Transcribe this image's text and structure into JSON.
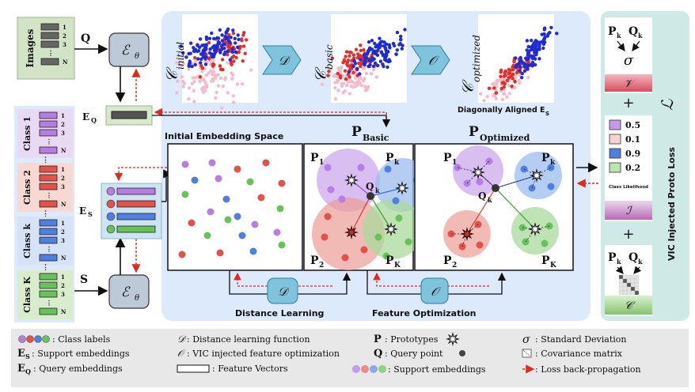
{
  "input": {
    "images_label": "Images",
    "q_label": "Q",
    "s_label": "S",
    "eq_label": "E",
    "eq_sub": "Q",
    "es_label": "E",
    "es_sub": "S",
    "encoder_label": "ℰ",
    "encoder_sub": "θ",
    "image_rows": [
      "1",
      "2",
      "3",
      "N"
    ],
    "classes": [
      {
        "name": "Class 1",
        "color": "#b57ee0",
        "rows": [
          "1",
          "2",
          "3",
          "N"
        ]
      },
      {
        "name": "Class 2",
        "color": "#e0524a",
        "rows": [
          "1",
          "2",
          "3",
          "N"
        ]
      },
      {
        "name": "Class k",
        "color": "#4f7fe0",
        "rows": [
          "1",
          "2",
          "3",
          "N"
        ]
      },
      {
        "name": "Class K",
        "color": "#66c259",
        "rows": [
          "1",
          "2",
          "3",
          "N"
        ]
      }
    ]
  },
  "top": {
    "c_initial": "𝒞",
    "c_initial_sub": "initial",
    "c_basic": "𝒞",
    "c_basic_sub": "basic",
    "c_optimized": "𝒞",
    "c_optimized_sub": "optimized",
    "d_symbol": "𝒟",
    "o_symbol": "𝒪",
    "diag_label": "Diagonally Aligned E",
    "diag_sub": "S"
  },
  "panels": {
    "initial_title": "Initial Embedding Space",
    "basic_title": "P",
    "basic_sub": "Basic",
    "optimized_title": "P",
    "optimized_sub": "Optimized",
    "p1": "P",
    "p1_sub": "1",
    "p2": "P",
    "p2_sub": "2",
    "pk": "P",
    "pk_sub": "k",
    "pK": "P",
    "pK_sub": "K",
    "qk": "Q",
    "qk_sub": "k",
    "distance_learning": "Distance Learning",
    "feature_optimization": "Feature Optimization"
  },
  "loss": {
    "title": "VIC Injected Proto Loss",
    "script_l": "ℒ",
    "pk": "P",
    "pk_sub": "k",
    "qk": "Q",
    "qk_sub": "k",
    "sigma": "σ",
    "v": "𝒱",
    "i": "ℐ",
    "c": "𝒞",
    "plus": "+",
    "class_likelihood": "Class Likelihood",
    "likelihoods": [
      {
        "value": "0.5",
        "color": "#c49be8"
      },
      {
        "value": "0.1",
        "color": "#f6d3d3"
      },
      {
        "value": "0.9",
        "color": "#4f7fe0"
      },
      {
        "value": "0.2",
        "color": "#bfe3b0"
      }
    ]
  },
  "legend": {
    "class_labels": ": Class labels",
    "support_emb_sym": "E",
    "support_emb_sub": "S",
    "support_emb": ": Support embeddings",
    "query_emb_sym": "E",
    "query_emb_sub": "Q",
    "query_emb": ": Query embeddings",
    "d_sym": "𝒟",
    "d_text": ": Distance learning function",
    "o_sym": "𝒪",
    "o_text": ": VIC injected feature optimization",
    "fv_text": ": Feature Vectors",
    "p_sym": "P",
    "p_text": ": Prototypes",
    "q_sym": "Q",
    "q_text": ": Query point",
    "se_text": ": Support embeddings",
    "sigma_sym": "σ",
    "sigma_text": ": Standard Deviation",
    "cov_text": ": Covariance matrix",
    "loss_text": ": Loss back-propagation"
  }
}
